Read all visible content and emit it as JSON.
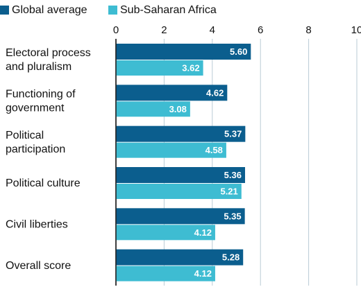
{
  "chart_data": {
    "type": "hbar",
    "categories": [
      [
        "Electoral process",
        "and pluralism"
      ],
      [
        "Functioning of",
        "government"
      ],
      [
        "Political",
        "participation"
      ],
      [
        "Political culture"
      ],
      [
        "Civil liberties"
      ],
      [
        "Overall score"
      ]
    ],
    "series": [
      {
        "name": "Global average",
        "color": "#0b5e8e",
        "values": [
          5.6,
          4.62,
          5.37,
          5.36,
          5.35,
          5.28
        ],
        "value_labels": [
          "5.60",
          "4.62",
          "5.37",
          "5.36",
          "5.35",
          "5.28"
        ]
      },
      {
        "name": "Sub-Saharan Africa",
        "color": "#3ebcd2",
        "values": [
          3.62,
          3.08,
          4.58,
          5.21,
          4.12,
          4.12
        ],
        "value_labels": [
          "3.62",
          "3.08",
          "4.58",
          "5.21",
          "4.12",
          "4.12"
        ]
      }
    ],
    "xlim": [
      0,
      10
    ],
    "xticks": [
      0,
      2,
      4,
      6,
      8,
      10
    ],
    "grid": true
  }
}
